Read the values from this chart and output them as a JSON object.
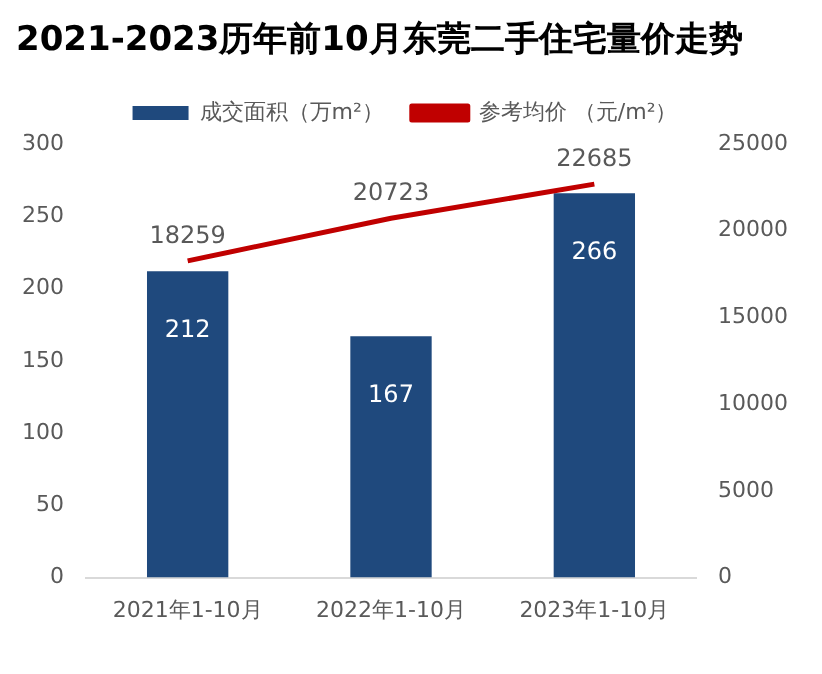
{
  "chart_data": {
    "type": "bar",
    "title": "2021-2023历年前10月东莞二手住宅量价走势",
    "categories": [
      "2021年1-10月",
      "2022年1-10月",
      "2023年1-10月"
    ],
    "series": [
      {
        "name": "成交面积（万m²）",
        "color": "#1f497d",
        "values": [
          212,
          167,
          266
        ]
      },
      {
        "name": "参考均价 （元/m²）",
        "type": "line",
        "axis": "y2",
        "color": "#c00000",
        "values": [
          18259,
          20723,
          22685
        ]
      }
    ],
    "ylim": [
      0,
      300
    ],
    "yticks": [
      0,
      50,
      100,
      150,
      200,
      250,
      300
    ],
    "y2lim": [
      0,
      25000
    ],
    "y2ticks": [
      0,
      5000,
      10000,
      15000,
      20000,
      25000
    ],
    "data_labels": true,
    "legend": "top",
    "grid": false,
    "marker": "none",
    "line_style": "solid"
  }
}
